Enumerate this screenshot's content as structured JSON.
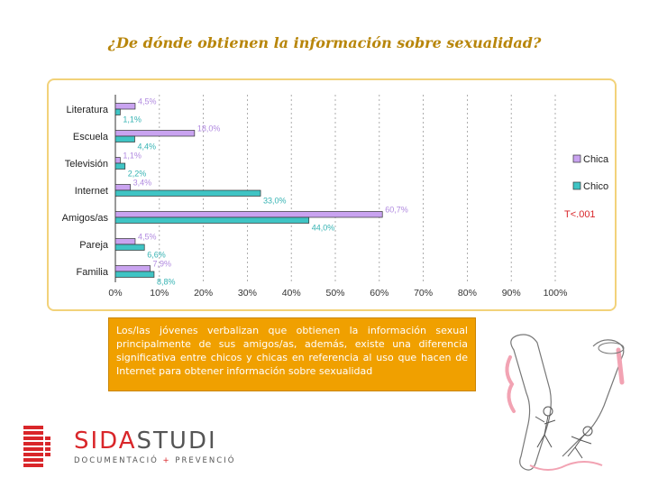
{
  "slide": {
    "title": "¿De dónde obtienen la información sobre sexualidad?",
    "caption": "Los/las jóvenes verbalizan que obtienen la información sexual principalmente de sus amigos/as, además, existe una diferencia significativa entre chicos y chicas en referencia al uso que hacen de Internet para obtener información sobre sexualidad"
  },
  "logo": {
    "brand_part1": "SIDA",
    "brand_part2": "STUDI",
    "subtitle_part1": "DOCUMENTACIÓ",
    "subtitle_sep": " + ",
    "subtitle_part2": "PREVENCIÓ",
    "colors": {
      "red": "#d9262a",
      "gray": "#555555"
    }
  },
  "chart_data": {
    "type": "bar",
    "orientation": "horizontal",
    "categories": [
      "Literatura",
      "Escuela",
      "Televisión",
      "Internet",
      "Amigos/as",
      "Pareja",
      "Familia"
    ],
    "series": [
      {
        "name": "Chica",
        "color": "#c9a3f0",
        "label_color": "#b18ae0",
        "labels": [
          "4,5%",
          "18,0%",
          "1,1%",
          "3,4%",
          "60,7%",
          "4,5%",
          "7,9%"
        ],
        "values": [
          4.5,
          18.0,
          1.1,
          3.4,
          60.7,
          4.5,
          7.9
        ]
      },
      {
        "name": "Chico",
        "color": "#3fc4c4",
        "label_color": "#35b3b3",
        "labels": [
          "1,1%",
          "4,4%",
          "2,2%",
          "33,0%",
          "44,0%",
          "6,6%",
          "8,8%"
        ],
        "values": [
          1.1,
          4.4,
          2.2,
          33.0,
          44.0,
          6.6,
          8.8
        ]
      }
    ],
    "xlim": [
      0,
      100
    ],
    "xticks": [
      "0%",
      "10%",
      "20%",
      "30%",
      "40%",
      "50%",
      "60%",
      "70%",
      "80%",
      "90%",
      "100%"
    ],
    "grid": "vertical dashed",
    "legend": "right",
    "annotation": "T<.001"
  }
}
